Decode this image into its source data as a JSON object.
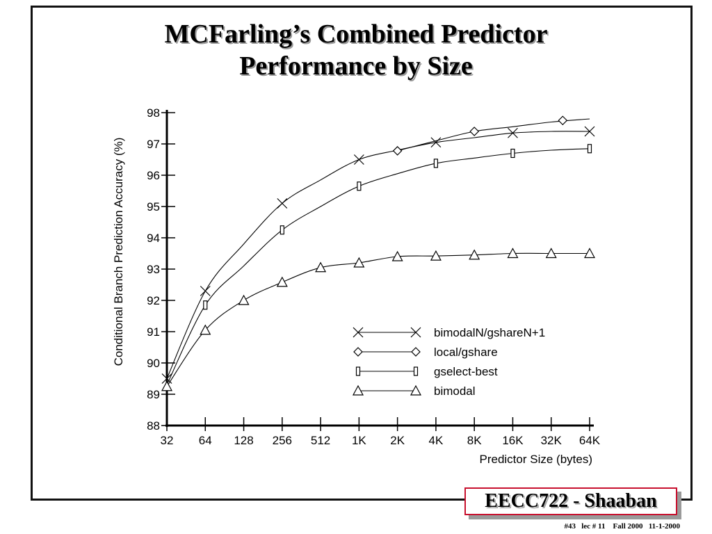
{
  "slide": {
    "title_line1": "MCFarling’s Combined Predictor",
    "title_line2": "Performance by Size",
    "badge": "EECC722 - Shaaban",
    "footer": "#43   lec # 11    Fall 2000   11-1-2000"
  },
  "chart_data": {
    "type": "line",
    "xlabel": "Predictor Size (bytes)",
    "ylabel": "Conditional Branch Prediction Accuracy (%)",
    "categories": [
      "32",
      "64",
      "128",
      "256",
      "512",
      "1K",
      "2K",
      "4K",
      "8K",
      "16K",
      "32K",
      "64K"
    ],
    "ylim": [
      88,
      98
    ],
    "yticks": [
      88,
      89,
      90,
      91,
      92,
      93,
      94,
      95,
      96,
      97,
      98
    ],
    "grid": false,
    "legend_position": "bottom-right",
    "series": [
      {
        "name": "bimodalN/gshareN+1",
        "marker": "x",
        "points": [
          [
            0,
            89.5
          ],
          [
            1,
            92.3
          ],
          [
            3,
            95.1
          ],
          [
            5,
            96.5
          ],
          [
            7,
            97.05
          ],
          [
            9,
            97.35
          ],
          [
            11,
            97.4
          ]
        ],
        "curve": [
          [
            0,
            89.5
          ],
          [
            1,
            92.3
          ],
          [
            2,
            93.8
          ],
          [
            3,
            95.1
          ],
          [
            4,
            95.85
          ],
          [
            5,
            96.5
          ],
          [
            6,
            96.8
          ],
          [
            7,
            97.05
          ],
          [
            8,
            97.2
          ],
          [
            9,
            97.35
          ],
          [
            10,
            97.4
          ],
          [
            11,
            97.4
          ]
        ]
      },
      {
        "name": "local/gshare",
        "marker": "diamond",
        "points": [
          [
            6,
            96.78
          ],
          [
            8,
            97.4
          ],
          [
            10.3,
            97.75
          ]
        ],
        "curve": [
          [
            6,
            96.78
          ],
          [
            7,
            97.1
          ],
          [
            8,
            97.4
          ],
          [
            9,
            97.55
          ],
          [
            10,
            97.7
          ],
          [
            11,
            97.8
          ]
        ]
      },
      {
        "name": "gselect-best",
        "marker": "rect",
        "points": [
          [
            1,
            91.85
          ],
          [
            3,
            94.25
          ],
          [
            5,
            95.65
          ],
          [
            7,
            96.38
          ],
          [
            9,
            96.7
          ],
          [
            11,
            96.85
          ]
        ],
        "curve": [
          [
            0,
            89.3
          ],
          [
            1,
            91.85
          ],
          [
            2,
            93.1
          ],
          [
            3,
            94.25
          ],
          [
            4,
            95.0
          ],
          [
            5,
            95.65
          ],
          [
            6,
            96.05
          ],
          [
            7,
            96.38
          ],
          [
            8,
            96.55
          ],
          [
            9,
            96.7
          ],
          [
            10,
            96.8
          ],
          [
            11,
            96.85
          ]
        ]
      },
      {
        "name": "bimodal",
        "marker": "triangle",
        "points": [
          [
            0,
            89.25
          ],
          [
            1,
            91.05
          ],
          [
            2,
            92.0
          ],
          [
            3,
            92.58
          ],
          [
            4,
            93.05
          ],
          [
            5,
            93.2
          ],
          [
            6,
            93.4
          ],
          [
            7,
            93.42
          ],
          [
            8,
            93.45
          ],
          [
            9,
            93.5
          ],
          [
            10,
            93.5
          ],
          [
            11,
            93.5
          ]
        ],
        "curve": [
          [
            0,
            89.25
          ],
          [
            1,
            91.05
          ],
          [
            2,
            92.0
          ],
          [
            3,
            92.58
          ],
          [
            4,
            93.05
          ],
          [
            5,
            93.2
          ],
          [
            6,
            93.4
          ],
          [
            7,
            93.42
          ],
          [
            8,
            93.45
          ],
          [
            9,
            93.5
          ],
          [
            10,
            93.5
          ],
          [
            11,
            93.5
          ]
        ]
      }
    ]
  }
}
